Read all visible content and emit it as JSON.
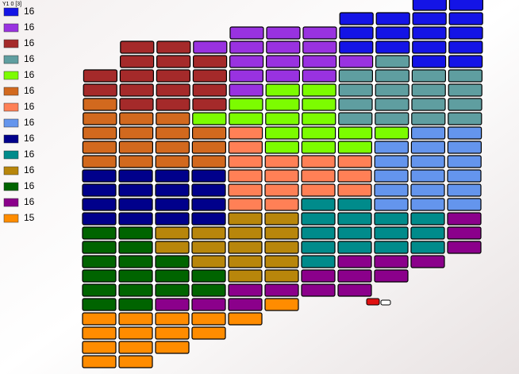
{
  "header": {
    "caption": "Y1 0 [3]"
  },
  "legend": [
    {
      "color": "#1414e6",
      "count": 16
    },
    {
      "color": "#9932e0",
      "count": 16
    },
    {
      "color": "#a52a2a",
      "count": 16
    },
    {
      "color": "#5f9ea0",
      "count": 16
    },
    {
      "color": "#7cfc00",
      "count": 16
    },
    {
      "color": "#d2691e",
      "count": 16
    },
    {
      "color": "#ff8056",
      "count": 16
    },
    {
      "color": "#6495ed",
      "count": 16
    },
    {
      "color": "#00008b",
      "count": 16
    },
    {
      "color": "#008b8b",
      "count": 16
    },
    {
      "color": "#b8860b",
      "count": 16
    },
    {
      "color": "#006400",
      "count": 16
    },
    {
      "color": "#8b008b",
      "count": 16
    },
    {
      "color": "#ff8c00",
      "count": 15
    }
  ]
}
